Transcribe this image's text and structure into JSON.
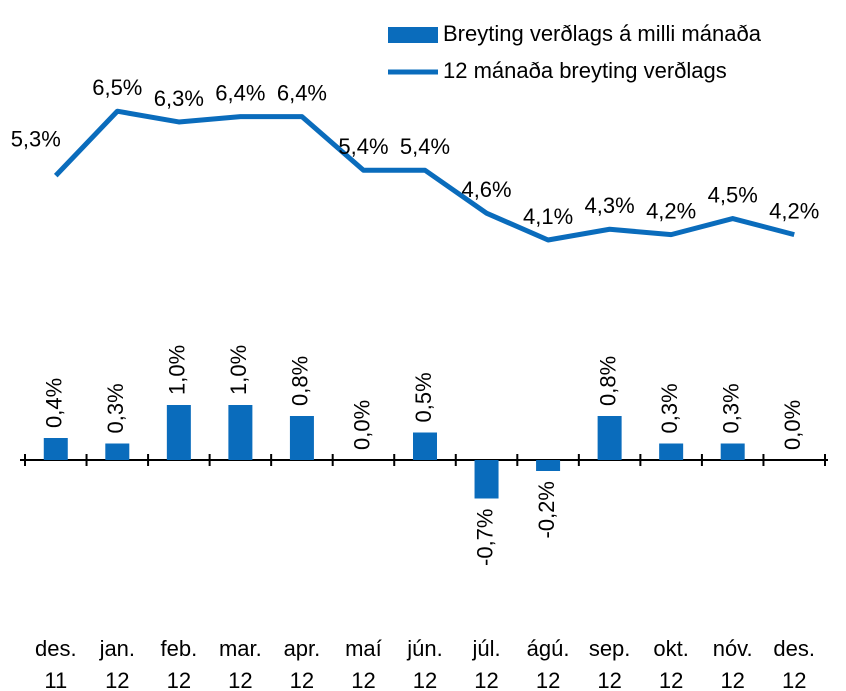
{
  "chart_data": {
    "type": "bar_line",
    "categories": [
      "des. 11",
      "jan. 12",
      "feb. 12",
      "mar. 12",
      "apr. 12",
      "maí 12",
      "jún. 12",
      "júl. 12",
      "ágú. 12",
      "sep. 12",
      "okt. 12",
      "nóv. 12",
      "des. 12"
    ],
    "series": [
      {
        "name": "Breyting verðlags á milli mánaða",
        "type": "bar",
        "color": "#0a6cbc",
        "values": [
          0.4,
          0.3,
          1.0,
          1.0,
          0.8,
          0.0,
          0.5,
          -0.7,
          -0.2,
          0.8,
          0.3,
          0.3,
          0.0
        ],
        "value_labels": [
          "0,4%",
          "0,3%",
          "1,0%",
          "1,0%",
          "0,8%",
          "0,0%",
          "0,5%",
          "-0,7%",
          "-0,2%",
          "0,8%",
          "0,3%",
          "0,3%",
          "0,0%"
        ]
      },
      {
        "name": "12 mánaða breyting verðlags",
        "type": "line",
        "axis": "y2",
        "color": "#0a6cbc",
        "values": [
          5.3,
          6.5,
          6.3,
          6.4,
          6.4,
          5.4,
          5.4,
          4.6,
          4.1,
          4.3,
          4.2,
          4.5,
          4.2
        ],
        "value_labels": [
          "5,3%",
          "6,5%",
          "6,3%",
          "6,4%",
          "6,4%",
          "5,4%",
          "5,4%",
          "4,6%",
          "4,1%",
          "4,3%",
          "4,2%",
          "4,5%",
          "4,2%"
        ]
      }
    ],
    "ylim": [
      -4,
      8
    ],
    "y2lim": [
      -4.1,
      8.2
    ],
    "legend": "top-right"
  }
}
